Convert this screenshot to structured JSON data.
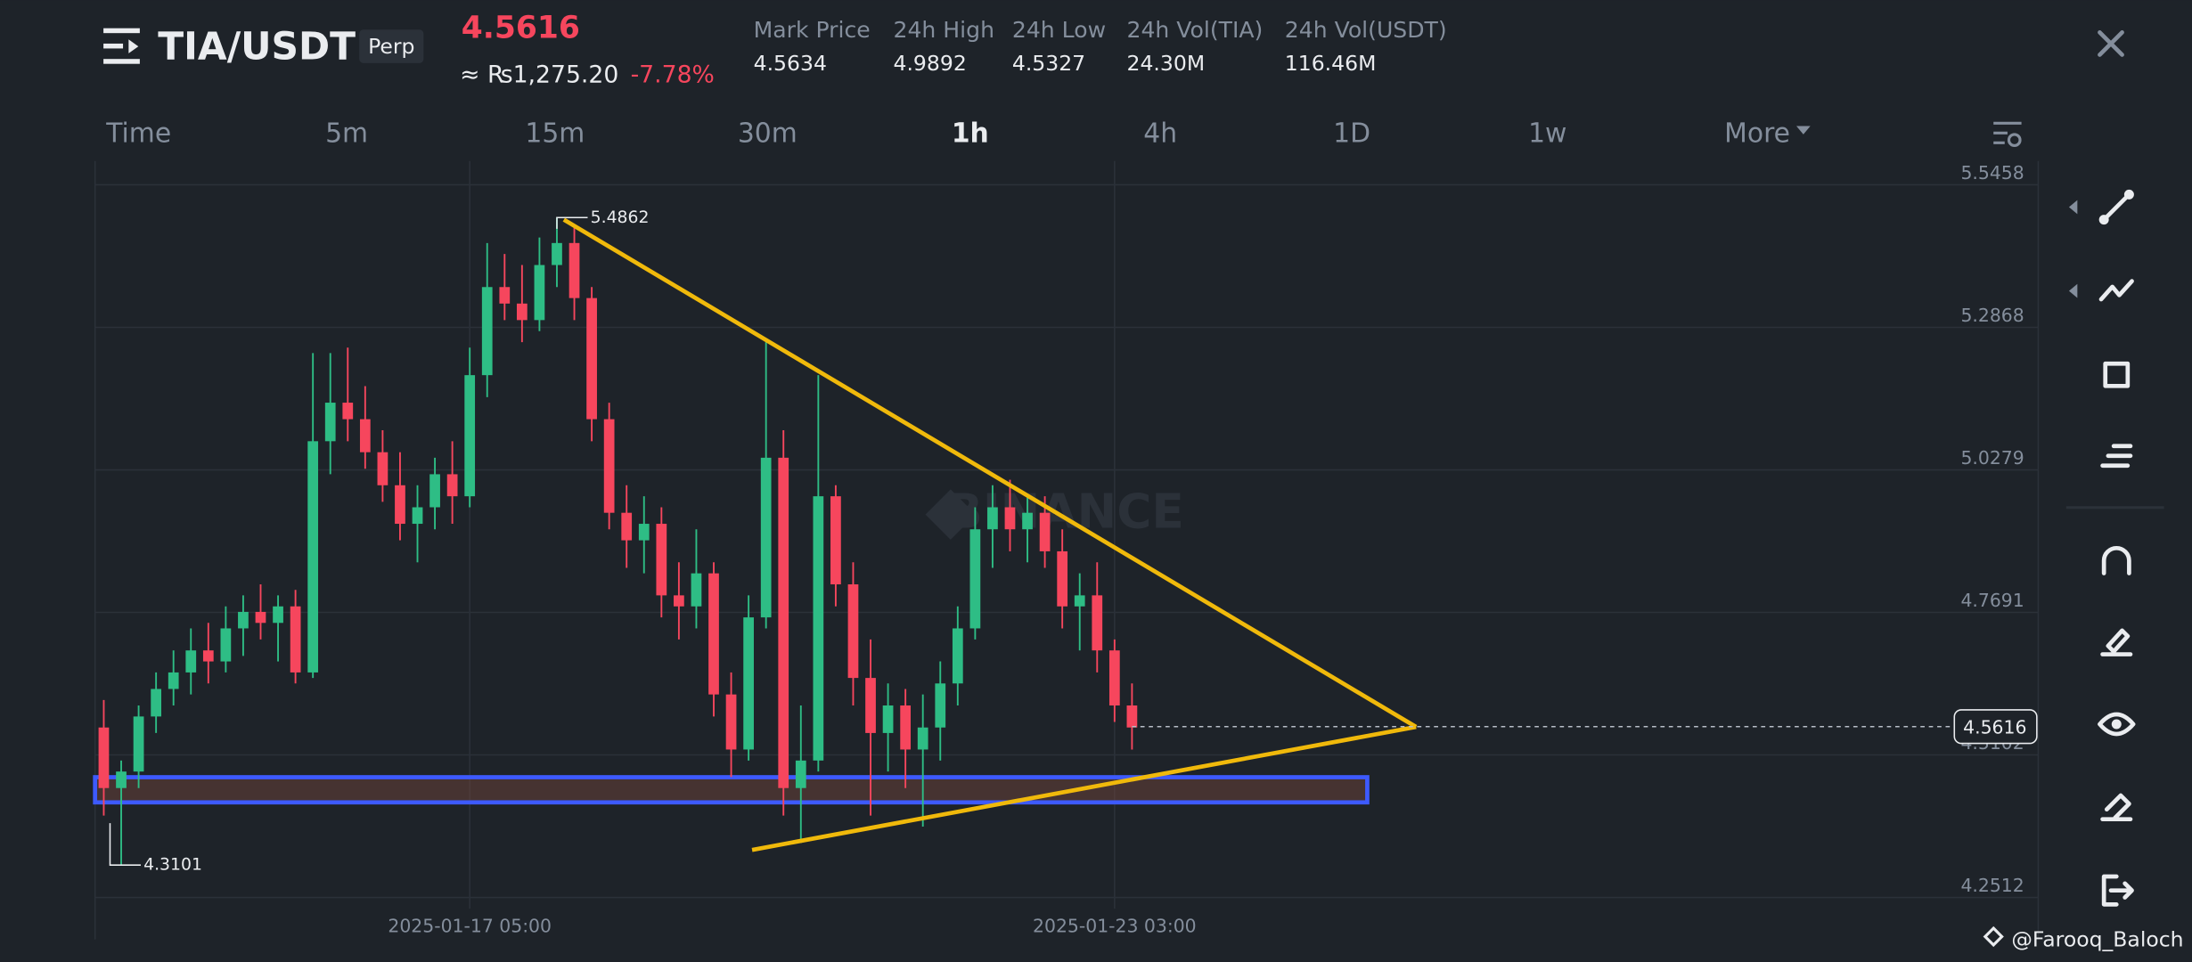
{
  "header": {
    "title": "TIA/USDT",
    "badge": "Perp",
    "last_price": "4.5616",
    "fiat_price": "≈ ₨1,275.20",
    "change": "-7.78%",
    "stats": [
      {
        "label": "Mark Price",
        "value": "4.5634"
      },
      {
        "label": "24h High",
        "value": "4.9892"
      },
      {
        "label": "24h Low",
        "value": "4.5327"
      },
      {
        "label": "24h Vol(TIA)",
        "value": "24.30M"
      },
      {
        "label": "24h Vol(USDT)",
        "value": "116.46M"
      }
    ]
  },
  "intervals": [
    "Time",
    "5m",
    "15m",
    "30m",
    "1h",
    "4h",
    "1D",
    "1w",
    "More"
  ],
  "active_interval": 4,
  "watermark": "BINANCE",
  "credit": "@Farooq_Baloch",
  "chart_data": {
    "type": "candlestick",
    "up_color": "#2ebd85",
    "down_color": "#f6465d",
    "open": [
      4.56,
      4.45,
      4.48,
      4.58,
      4.63,
      4.66,
      4.7,
      4.68,
      4.74,
      4.77,
      4.75,
      4.78,
      4.66,
      5.08,
      5.15,
      5.12,
      5.06,
      5.0,
      4.93,
      4.96,
      5.02,
      4.98,
      5.2,
      5.36,
      5.33,
      5.3,
      5.4,
      5.44,
      5.34,
      5.12,
      4.95,
      4.9,
      4.93,
      4.8,
      4.78,
      4.84,
      4.62,
      4.52,
      4.76,
      5.05,
      4.45,
      4.5,
      4.98,
      4.82,
      4.65,
      4.55,
      4.6,
      4.52,
      4.56,
      4.64,
      4.74,
      4.92,
      4.96,
      4.92,
      4.95,
      4.88,
      4.78,
      4.8,
      4.7,
      4.6
    ],
    "high": [
      4.61,
      4.5,
      4.6,
      4.66,
      4.7,
      4.74,
      4.75,
      4.78,
      4.8,
      4.82,
      4.8,
      4.81,
      5.24,
      5.24,
      5.25,
      5.18,
      5.1,
      5.06,
      5.0,
      5.05,
      5.08,
      5.25,
      5.44,
      5.42,
      5.4,
      5.45,
      5.4862,
      5.47,
      5.36,
      5.15,
      5.0,
      4.98,
      4.96,
      4.86,
      4.92,
      4.86,
      4.66,
      4.8,
      5.26,
      5.1,
      4.6,
      5.2,
      5.0,
      4.86,
      4.72,
      4.64,
      4.63,
      4.62,
      4.68,
      4.78,
      4.96,
      5.0,
      5.01,
      4.98,
      4.98,
      4.92,
      4.84,
      4.86,
      4.72,
      4.64
    ],
    "low": [
      4.4,
      4.3101,
      4.45,
      4.55,
      4.6,
      4.62,
      4.64,
      4.66,
      4.69,
      4.72,
      4.68,
      4.64,
      4.65,
      5.02,
      5.08,
      5.03,
      4.97,
      4.9,
      4.86,
      4.92,
      4.93,
      4.96,
      5.16,
      5.3,
      5.26,
      5.28,
      5.36,
      5.3,
      5.08,
      4.92,
      4.85,
      4.84,
      4.76,
      4.72,
      4.74,
      4.58,
      4.47,
      4.5,
      4.74,
      4.4,
      4.35,
      4.48,
      4.78,
      4.6,
      4.4,
      4.48,
      4.45,
      4.38,
      4.5,
      4.6,
      4.72,
      4.85,
      4.88,
      4.86,
      4.85,
      4.74,
      4.7,
      4.66,
      4.57,
      4.52
    ],
    "close": [
      4.45,
      4.48,
      4.58,
      4.63,
      4.66,
      4.7,
      4.68,
      4.74,
      4.77,
      4.75,
      4.78,
      4.66,
      5.08,
      5.15,
      5.12,
      5.06,
      5.0,
      4.93,
      4.96,
      5.02,
      4.98,
      5.2,
      5.36,
      5.33,
      5.3,
      5.4,
      5.44,
      5.34,
      5.12,
      4.95,
      4.9,
      4.93,
      4.8,
      4.78,
      4.84,
      4.62,
      4.52,
      4.76,
      5.05,
      4.45,
      4.5,
      4.98,
      4.82,
      4.65,
      4.55,
      4.6,
      4.52,
      4.56,
      4.64,
      4.74,
      4.92,
      4.96,
      4.92,
      4.95,
      4.88,
      4.78,
      4.8,
      4.7,
      4.6,
      4.56
    ],
    "xlim": [
      -0.5,
      111
    ],
    "xticks": [
      {
        "value": 21,
        "label": "2025-01-17 05:00"
      },
      {
        "value": 58,
        "label": "2025-01-23 03:00"
      }
    ],
    "ylim": [
      4.231,
      5.589
    ],
    "yticks": [
      5.5458,
      5.2868,
      5.0279,
      4.7691,
      4.5102,
      4.2512
    ],
    "grid": true,
    "last_price": 4.5616,
    "high_marker": {
      "x": 26,
      "value": 5.4862
    },
    "low_marker": {
      "x": 1,
      "value": 4.3101
    },
    "trendlines": [
      {
        "color": "#f0b90b",
        "x": [
          26.4,
          75.3
        ],
        "y": [
          5.4824,
          4.5611
        ]
      },
      {
        "color": "#f0b90b",
        "x": [
          37.2,
          75.3
        ],
        "y": [
          4.3377,
          4.5611
        ]
      }
    ],
    "zone": {
      "color": "#3d5afe",
      "x": [
        -0.5,
        72.5
      ],
      "y": [
        4.4697,
        4.424
      ]
    }
  }
}
